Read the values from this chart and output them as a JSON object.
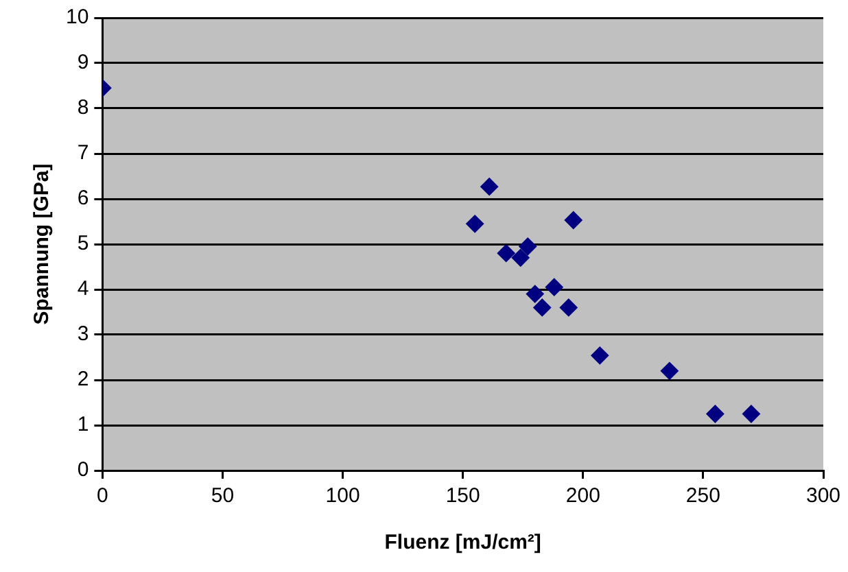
{
  "chart_data": {
    "type": "scatter",
    "xlabel": "Fluenz [mJ/cm²]",
    "ylabel": "Spannung [GPa]",
    "x": [
      0,
      155,
      161,
      168,
      174,
      177,
      180,
      183,
      188,
      194,
      196,
      207,
      236,
      255,
      270
    ],
    "series": [
      {
        "color": "#000080",
        "values": [
          8.45,
          5.45,
          6.27,
          4.8,
          4.7,
          4.95,
          3.9,
          3.6,
          4.05,
          3.6,
          5.53,
          2.54,
          2.2,
          1.25,
          1.25
        ]
      }
    ],
    "xlim": [
      0,
      300
    ],
    "xticks": [
      0,
      50,
      100,
      150,
      200,
      250,
      300
    ],
    "ylim": [
      0,
      10
    ],
    "yticks": [
      0,
      1,
      2,
      3,
      4,
      5,
      6,
      7,
      8,
      9,
      10
    ],
    "grid": "y",
    "legend": false,
    "marker": "diamond"
  }
}
